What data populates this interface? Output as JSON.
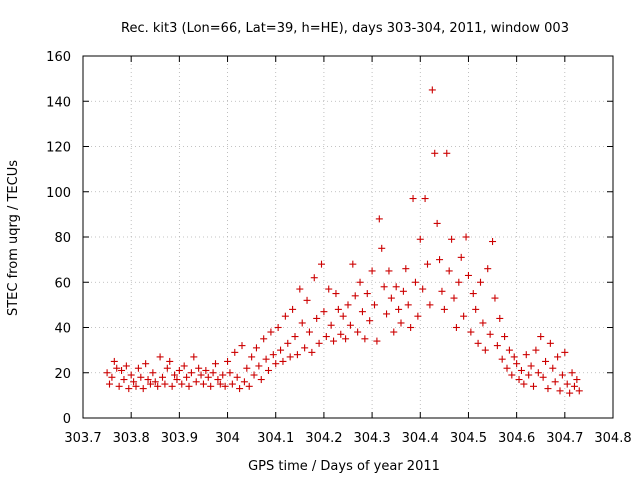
{
  "chart_data": {
    "type": "scatter",
    "title": "Rec. kit3 (Lon=66, Lat=39, h=HE), days 303-304, 2011, window 003",
    "xlabel": "GPS time / Days of year 2011",
    "ylabel": "STEC from uqrg / TECUs",
    "xlim": [
      303.7,
      304.8
    ],
    "ylim": [
      0,
      160
    ],
    "x_ticks": [
      "303.7",
      "303.8",
      "303.9",
      "304",
      "304.1",
      "304.2",
      "304.3",
      "304.4",
      "304.5",
      "304.6",
      "304.7",
      "304.8"
    ],
    "y_ticks": [
      "0",
      "20",
      "40",
      "60",
      "80",
      "100",
      "120",
      "140",
      "160"
    ],
    "grid": true,
    "legend": "none",
    "marker": "plus",
    "color": "#cc0000",
    "series": [
      {
        "points": [
          [
            303.75,
            20
          ],
          [
            303.755,
            15
          ],
          [
            303.76,
            18
          ],
          [
            303.765,
            25
          ],
          [
            303.77,
            22
          ],
          [
            303.775,
            14
          ],
          [
            303.78,
            21
          ],
          [
            303.785,
            17
          ],
          [
            303.79,
            23
          ],
          [
            303.795,
            13
          ],
          [
            303.8,
            19
          ],
          [
            303.805,
            16
          ],
          [
            303.81,
            14
          ],
          [
            303.815,
            22
          ],
          [
            303.82,
            18
          ],
          [
            303.825,
            13
          ],
          [
            303.83,
            24
          ],
          [
            303.835,
            17
          ],
          [
            303.84,
            15
          ],
          [
            303.845,
            20
          ],
          [
            303.85,
            16
          ],
          [
            303.855,
            14
          ],
          [
            303.86,
            27
          ],
          [
            303.865,
            18
          ],
          [
            303.87,
            15
          ],
          [
            303.875,
            22
          ],
          [
            303.88,
            25
          ],
          [
            303.885,
            14
          ],
          [
            303.89,
            19
          ],
          [
            303.895,
            17
          ],
          [
            303.9,
            21
          ],
          [
            303.905,
            15
          ],
          [
            303.91,
            23
          ],
          [
            303.915,
            18
          ],
          [
            303.92,
            14
          ],
          [
            303.925,
            20
          ],
          [
            303.93,
            27
          ],
          [
            303.935,
            16
          ],
          [
            303.94,
            22
          ],
          [
            303.945,
            19
          ],
          [
            303.95,
            15
          ],
          [
            303.955,
            21
          ],
          [
            303.96,
            18
          ],
          [
            303.965,
            14
          ],
          [
            303.97,
            20
          ],
          [
            303.975,
            24
          ],
          [
            303.98,
            17
          ],
          [
            303.985,
            15
          ],
          [
            303.99,
            19
          ],
          [
            303.995,
            14
          ],
          [
            304.0,
            25
          ],
          [
            304.005,
            20
          ],
          [
            304.01,
            15
          ],
          [
            304.015,
            29
          ],
          [
            304.02,
            18
          ],
          [
            304.025,
            13
          ],
          [
            304.03,
            32
          ],
          [
            304.035,
            16
          ],
          [
            304.04,
            22
          ],
          [
            304.045,
            14
          ],
          [
            304.05,
            27
          ],
          [
            304.055,
            19
          ],
          [
            304.06,
            31
          ],
          [
            304.065,
            23
          ],
          [
            304.07,
            17
          ],
          [
            304.075,
            35
          ],
          [
            304.08,
            26
          ],
          [
            304.085,
            21
          ],
          [
            304.09,
            38
          ],
          [
            304.095,
            28
          ],
          [
            304.1,
            24
          ],
          [
            304.105,
            40
          ],
          [
            304.11,
            30
          ],
          [
            304.115,
            25
          ],
          [
            304.12,
            45
          ],
          [
            304.125,
            33
          ],
          [
            304.13,
            27
          ],
          [
            304.135,
            48
          ],
          [
            304.14,
            36
          ],
          [
            304.145,
            28
          ],
          [
            304.15,
            57
          ],
          [
            304.155,
            42
          ],
          [
            304.16,
            31
          ],
          [
            304.165,
            52
          ],
          [
            304.17,
            38
          ],
          [
            304.175,
            29
          ],
          [
            304.18,
            62
          ],
          [
            304.185,
            44
          ],
          [
            304.19,
            33
          ],
          [
            304.195,
            68
          ],
          [
            304.2,
            47
          ],
          [
            304.205,
            36
          ],
          [
            304.21,
            57
          ],
          [
            304.215,
            41
          ],
          [
            304.22,
            34
          ],
          [
            304.225,
            55
          ],
          [
            304.23,
            48
          ],
          [
            304.235,
            37
          ],
          [
            304.24,
            45
          ],
          [
            304.245,
            35
          ],
          [
            304.25,
            50
          ],
          [
            304.255,
            41
          ],
          [
            304.26,
            68
          ],
          [
            304.265,
            54
          ],
          [
            304.27,
            38
          ],
          [
            304.275,
            60
          ],
          [
            304.28,
            47
          ],
          [
            304.285,
            35
          ],
          [
            304.29,
            55
          ],
          [
            304.295,
            43
          ],
          [
            304.3,
            65
          ],
          [
            304.305,
            50
          ],
          [
            304.31,
            34
          ],
          [
            304.315,
            88
          ],
          [
            304.32,
            75
          ],
          [
            304.325,
            58
          ],
          [
            304.33,
            46
          ],
          [
            304.335,
            65
          ],
          [
            304.34,
            53
          ],
          [
            304.345,
            38
          ],
          [
            304.35,
            58
          ],
          [
            304.355,
            48
          ],
          [
            304.36,
            42
          ],
          [
            304.365,
            56
          ],
          [
            304.37,
            66
          ],
          [
            304.375,
            50
          ],
          [
            304.38,
            40
          ],
          [
            304.385,
            97
          ],
          [
            304.39,
            60
          ],
          [
            304.395,
            45
          ],
          [
            304.4,
            79
          ],
          [
            304.405,
            57
          ],
          [
            304.41,
            97
          ],
          [
            304.415,
            68
          ],
          [
            304.42,
            50
          ],
          [
            304.425,
            145
          ],
          [
            304.43,
            117
          ],
          [
            304.435,
            86
          ],
          [
            304.44,
            70
          ],
          [
            304.445,
            56
          ],
          [
            304.45,
            48
          ],
          [
            304.455,
            117
          ],
          [
            304.46,
            65
          ],
          [
            304.465,
            79
          ],
          [
            304.47,
            53
          ],
          [
            304.475,
            40
          ],
          [
            304.48,
            60
          ],
          [
            304.485,
            71
          ],
          [
            304.49,
            45
          ],
          [
            304.495,
            80
          ],
          [
            304.5,
            63
          ],
          [
            304.505,
            38
          ],
          [
            304.51,
            55
          ],
          [
            304.515,
            48
          ],
          [
            304.52,
            33
          ],
          [
            304.525,
            60
          ],
          [
            304.53,
            42
          ],
          [
            304.535,
            30
          ],
          [
            304.54,
            66
          ],
          [
            304.545,
            37
          ],
          [
            304.55,
            78
          ],
          [
            304.555,
            53
          ],
          [
            304.56,
            32
          ],
          [
            304.565,
            44
          ],
          [
            304.57,
            26
          ],
          [
            304.575,
            36
          ],
          [
            304.58,
            22
          ],
          [
            304.585,
            30
          ],
          [
            304.59,
            19
          ],
          [
            304.595,
            27
          ],
          [
            304.6,
            24
          ],
          [
            304.605,
            17
          ],
          [
            304.61,
            21
          ],
          [
            304.615,
            15
          ],
          [
            304.62,
            28
          ],
          [
            304.625,
            19
          ],
          [
            304.63,
            23
          ],
          [
            304.635,
            14
          ],
          [
            304.64,
            30
          ],
          [
            304.645,
            20
          ],
          [
            304.65,
            36
          ],
          [
            304.655,
            18
          ],
          [
            304.66,
            25
          ],
          [
            304.665,
            13
          ],
          [
            304.67,
            33
          ],
          [
            304.675,
            22
          ],
          [
            304.68,
            16
          ],
          [
            304.685,
            27
          ],
          [
            304.69,
            12
          ],
          [
            304.695,
            19
          ],
          [
            304.7,
            29
          ],
          [
            304.705,
            15
          ],
          [
            304.71,
            11
          ],
          [
            304.715,
            20
          ],
          [
            304.72,
            14
          ],
          [
            304.725,
            17
          ],
          [
            304.73,
            12
          ]
        ]
      }
    ]
  }
}
